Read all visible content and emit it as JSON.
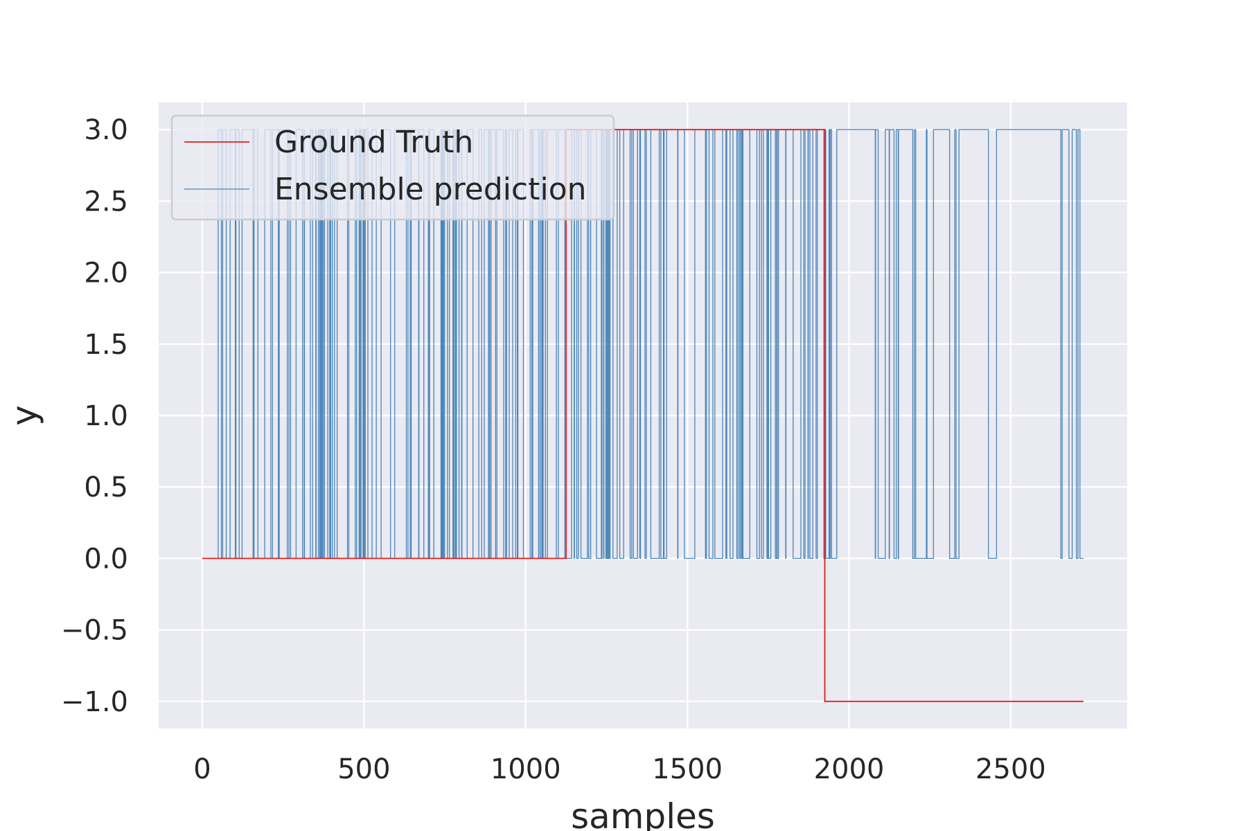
{
  "chart_data": {
    "type": "line",
    "xlabel": "samples",
    "ylabel": "y",
    "xlim": [
      -135,
      2860
    ],
    "ylim": [
      -1.19,
      3.19
    ],
    "xticks": [
      0,
      500,
      1000,
      1500,
      2000,
      2500
    ],
    "yticks": [
      -1.0,
      -0.5,
      0.0,
      0.5,
      1.0,
      1.5,
      2.0,
      2.5,
      3.0
    ],
    "ytick_labels": [
      "−1.0",
      "−0.5",
      "0.0",
      "0.5",
      "1.0",
      "1.5",
      "2.0",
      "2.5",
      "3.0"
    ],
    "xtick_labels": [
      "0",
      "500",
      "1000",
      "1500",
      "2000",
      "2500"
    ],
    "grid": true,
    "legend_position": "top-left",
    "series": [
      {
        "name": "Ground Truth",
        "color": "#e41a1c",
        "style": "step",
        "x": [
          0,
          1125,
          1125,
          1925,
          1925,
          2725
        ],
        "y": [
          0,
          0,
          3,
          3,
          -1,
          -1
        ]
      },
      {
        "name": "Ensemble prediction",
        "color": "#4a85b9",
        "style": "binary-switching",
        "x_range": [
          0,
          2725
        ],
        "low": 0,
        "high": 3,
        "segments": [
          {
            "x_start": 0,
            "x_end": 1125,
            "density": "very-high"
          },
          {
            "x_start": 1125,
            "x_end": 1290,
            "density": "high"
          },
          {
            "x_start": 1290,
            "x_end": 1440,
            "density": "very-high"
          },
          {
            "x_start": 1440,
            "x_end": 1600,
            "density": "medium"
          },
          {
            "x_start": 1600,
            "x_end": 1950,
            "density": "very-high"
          },
          {
            "x_start": 1950,
            "x_end": 2080,
            "density": "low"
          },
          {
            "x_start": 2080,
            "x_end": 2250,
            "density": "high"
          },
          {
            "x_start": 2250,
            "x_end": 2310,
            "density": "low"
          },
          {
            "x_start": 2310,
            "x_end": 2480,
            "density": "high"
          },
          {
            "x_start": 2480,
            "x_end": 2650,
            "density": "low"
          },
          {
            "x_start": 2650,
            "x_end": 2725,
            "density": "high"
          }
        ]
      }
    ]
  },
  "colors": {
    "plot_background": "#eaeaf2",
    "grid": "#ffffff",
    "text": "#262626",
    "legend_background": "#eaeaf2",
    "legend_border": "#cccccc"
  }
}
